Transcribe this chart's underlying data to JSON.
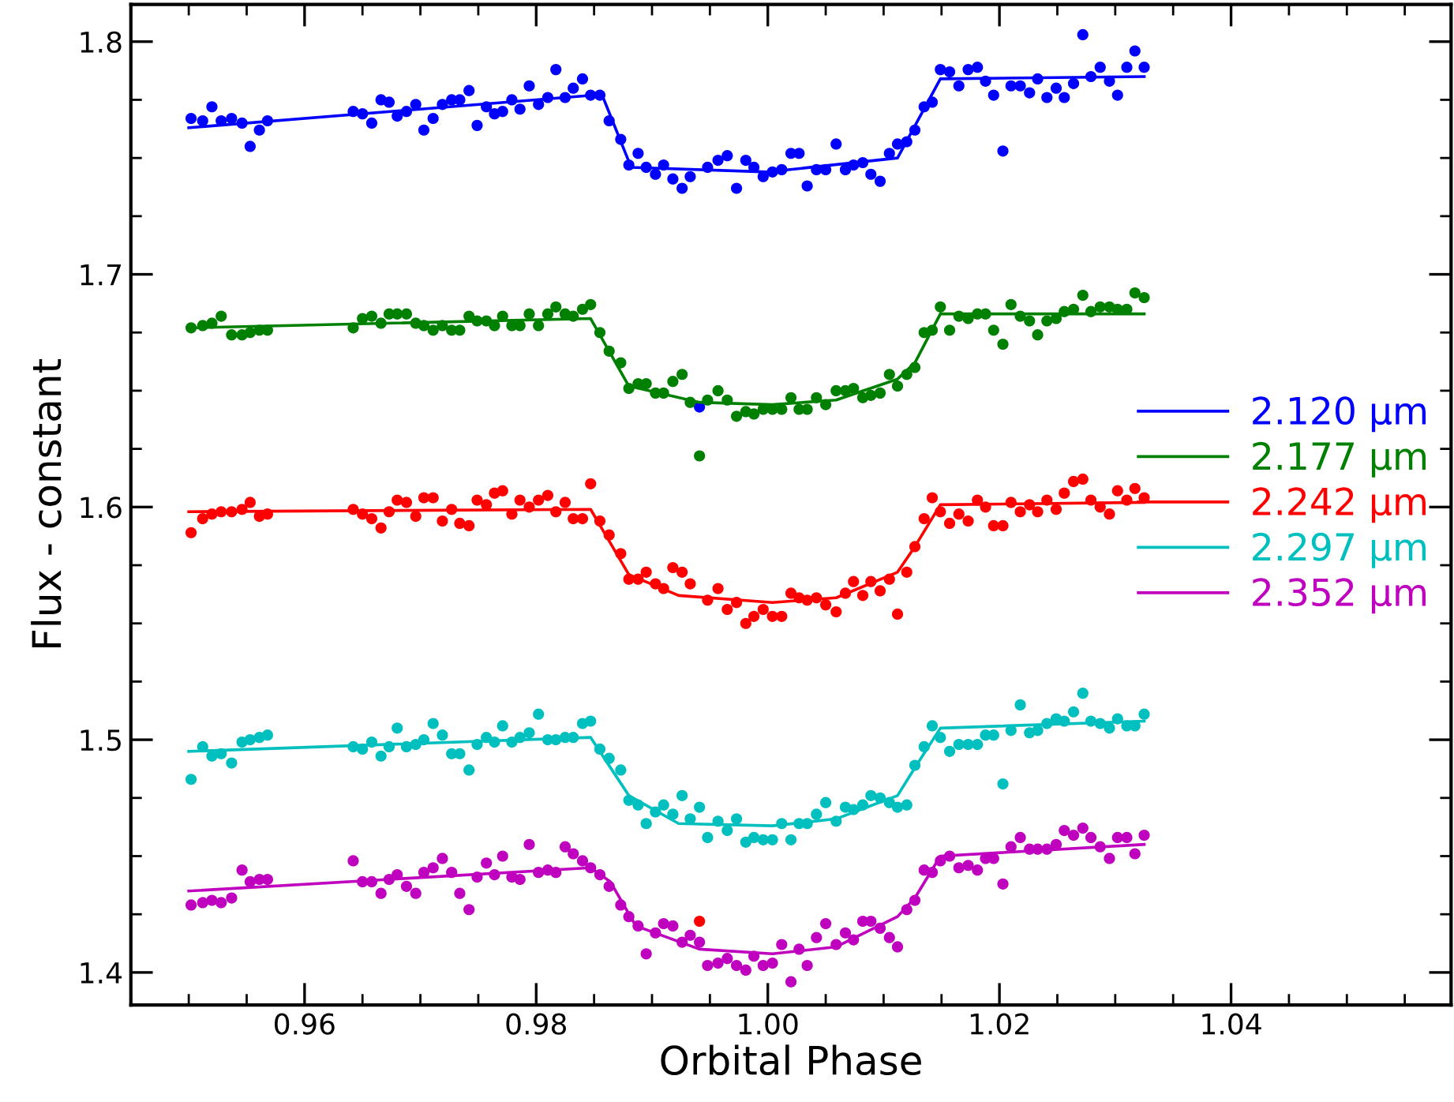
{
  "chart_data": {
    "type": "scatter",
    "xlabel": "Orbital Phase",
    "ylabel": "Flux - constant",
    "xlim": [
      0.945,
      1.059
    ],
    "ylim": [
      1.386,
      1.816
    ],
    "xticks": [
      0.96,
      0.98,
      {
        "value": 1.0,
        "label": "1.00"
      },
      1.02,
      1.04
    ],
    "yticks": [
      1.4,
      1.5,
      1.6,
      1.7,
      1.8
    ],
    "grid": false,
    "legend": "right",
    "x": [
      0.9502,
      0.9512,
      0.952,
      0.9528,
      0.9537,
      0.9546,
      0.9553,
      0.9561,
      0.9568,
      0.9642,
      0.965,
      0.9658,
      0.9666,
      0.9673,
      0.968,
      0.9688,
      0.9696,
      0.9703,
      0.9711,
      0.9719,
      0.9727,
      0.9734,
      0.9742,
      0.9749,
      0.9757,
      0.9764,
      0.9771,
      0.9779,
      0.9786,
      0.9794,
      0.9802,
      0.981,
      0.9817,
      0.9825,
      0.9832,
      0.984,
      0.9847,
      0.9855,
      0.9863,
      0.9873,
      0.988,
      0.9888,
      0.9895,
      0.9903,
      0.991,
      0.9918,
      0.9926,
      0.9933,
      0.9941,
      0.9948,
      0.9957,
      0.9965,
      0.9973,
      0.9981,
      0.9988,
      0.9996,
      1.0004,
      1.0012,
      1.002,
      1.0027,
      1.0034,
      1.0042,
      1.005,
      1.0059,
      1.0067,
      1.0074,
      1.0082,
      1.0089,
      1.0097,
      1.0105,
      1.0112,
      1.012,
      1.0127,
      1.0135,
      1.0142,
      1.0149,
      1.0157,
      1.0165,
      1.0173,
      1.0181,
      1.0188,
      1.0195,
      1.0203,
      1.021,
      1.0218,
      1.0226,
      1.0233,
      1.0241,
      1.0249,
      1.0256,
      1.0264,
      1.0272,
      1.0279,
      1.0287,
      1.0295,
      1.0302,
      1.031,
      1.0317,
      1.0325
    ],
    "series": [
      {
        "marker": "circle",
        "color": "#0000ff",
        "values": [
          1.767,
          1.766,
          1.772,
          1.766,
          1.767,
          1.765,
          1.755,
          1.762,
          1.766,
          1.77,
          1.769,
          1.765,
          1.775,
          1.774,
          1.768,
          1.77,
          1.773,
          1.762,
          1.767,
          1.773,
          1.775,
          1.775,
          1.779,
          1.764,
          1.772,
          1.769,
          1.77,
          1.775,
          1.771,
          1.781,
          1.773,
          1.776,
          1.788,
          1.776,
          1.78,
          1.784,
          1.777,
          1.777,
          1.766,
          1.758,
          1.747,
          1.752,
          1.746,
          1.743,
          1.747,
          1.741,
          1.737,
          1.742,
          1.643,
          1.746,
          1.749,
          1.751,
          1.737,
          1.749,
          1.746,
          1.742,
          1.744,
          1.745,
          1.752,
          1.752,
          1.738,
          1.745,
          1.745,
          1.756,
          1.745,
          1.747,
          1.748,
          1.743,
          1.74,
          1.752,
          1.756,
          1.757,
          1.762,
          1.772,
          1.774,
          1.788,
          1.787,
          1.781,
          1.788,
          1.789,
          1.783,
          1.777,
          1.753,
          1.781,
          1.781,
          1.778,
          1.784,
          1.776,
          1.78,
          1.776,
          1.782,
          1.803,
          1.785,
          1.789,
          1.783,
          1.777,
          1.789,
          1.796,
          1.789
        ]
      },
      {
        "marker": "circle",
        "color": "#008000",
        "values": [
          1.677,
          1.678,
          1.679,
          1.682,
          1.674,
          1.674,
          1.675,
          1.676,
          1.676,
          1.677,
          1.681,
          1.682,
          1.679,
          1.683,
          1.683,
          1.683,
          1.679,
          1.678,
          1.676,
          1.678,
          1.676,
          1.676,
          1.682,
          1.68,
          1.68,
          1.678,
          1.682,
          1.678,
          1.678,
          1.683,
          1.678,
          1.683,
          1.686,
          1.683,
          1.682,
          1.685,
          1.687,
          1.675,
          1.667,
          1.662,
          1.651,
          1.653,
          1.653,
          1.649,
          1.649,
          1.654,
          1.657,
          1.645,
          1.622,
          1.646,
          1.65,
          1.646,
          1.639,
          1.641,
          1.64,
          1.642,
          1.642,
          1.642,
          1.647,
          1.642,
          1.642,
          1.647,
          1.644,
          1.65,
          1.65,
          1.651,
          1.647,
          1.648,
          1.649,
          1.657,
          1.652,
          1.657,
          1.66,
          1.675,
          1.676,
          1.686,
          1.676,
          1.682,
          1.681,
          1.683,
          1.683,
          1.676,
          1.67,
          1.687,
          1.682,
          1.68,
          1.674,
          1.68,
          1.681,
          1.684,
          1.685,
          1.691,
          1.684,
          1.686,
          1.686,
          1.685,
          1.685,
          1.692,
          1.69
        ]
      },
      {
        "marker": "circle",
        "color": "#ff0000",
        "values": [
          1.589,
          1.595,
          1.597,
          1.598,
          1.598,
          1.599,
          1.602,
          1.596,
          1.597,
          1.599,
          1.597,
          1.595,
          1.591,
          1.598,
          1.603,
          1.602,
          1.596,
          1.604,
          1.604,
          1.594,
          1.599,
          1.593,
          1.592,
          1.603,
          1.601,
          1.606,
          1.607,
          1.597,
          1.603,
          1.6,
          1.603,
          1.605,
          1.598,
          1.602,
          1.595,
          1.595,
          1.61,
          1.594,
          1.588,
          1.58,
          1.569,
          1.569,
          1.572,
          1.567,
          1.565,
          1.574,
          1.572,
          1.567,
          1.422,
          1.56,
          1.565,
          1.556,
          1.559,
          1.55,
          1.553,
          1.556,
          1.553,
          1.553,
          1.563,
          1.561,
          1.56,
          1.561,
          1.558,
          1.555,
          1.563,
          1.568,
          1.562,
          1.568,
          1.564,
          1.569,
          1.554,
          1.572,
          1.583,
          1.595,
          1.604,
          1.598,
          1.593,
          1.597,
          1.594,
          1.603,
          1.6,
          1.592,
          1.592,
          1.602,
          1.598,
          1.601,
          1.598,
          1.603,
          1.599,
          1.606,
          1.611,
          1.612,
          1.603,
          1.6,
          1.597,
          1.607,
          1.603,
          1.608,
          1.604
        ]
      },
      {
        "marker": "circle",
        "color": "#00bfbf",
        "values": [
          1.483,
          1.497,
          1.493,
          1.494,
          1.49,
          1.499,
          1.5,
          1.501,
          1.502,
          1.497,
          1.496,
          1.499,
          1.493,
          1.497,
          1.505,
          1.497,
          1.498,
          1.5,
          1.507,
          1.502,
          1.494,
          1.494,
          1.487,
          1.498,
          1.501,
          1.499,
          1.506,
          1.499,
          1.501,
          1.503,
          1.511,
          1.5,
          1.5,
          1.501,
          1.501,
          1.507,
          1.508,
          1.496,
          1.492,
          1.487,
          1.474,
          1.472,
          1.464,
          1.469,
          1.472,
          1.468,
          1.476,
          1.466,
          1.471,
          1.458,
          1.465,
          1.461,
          1.466,
          1.456,
          1.458,
          1.457,
          1.457,
          1.464,
          1.457,
          1.464,
          1.464,
          1.468,
          1.473,
          1.465,
          1.471,
          1.47,
          1.472,
          1.476,
          1.475,
          1.473,
          1.471,
          1.472,
          1.489,
          1.497,
          1.506,
          1.501,
          1.495,
          1.498,
          1.498,
          1.498,
          1.502,
          1.502,
          1.481,
          1.504,
          1.515,
          1.503,
          1.504,
          1.507,
          1.509,
          1.508,
          1.512,
          1.52,
          1.508,
          1.507,
          1.505,
          1.509,
          1.506,
          1.506,
          1.511
        ]
      },
      {
        "marker": "circle",
        "color": "#bf00bf",
        "values": [
          1.429,
          1.43,
          1.431,
          1.43,
          1.432,
          1.444,
          1.439,
          1.44,
          1.44,
          1.448,
          1.439,
          1.439,
          1.434,
          1.44,
          1.442,
          1.437,
          1.434,
          1.443,
          1.445,
          1.449,
          1.443,
          1.434,
          1.427,
          1.441,
          1.447,
          1.442,
          1.45,
          1.441,
          1.44,
          1.455,
          1.443,
          1.444,
          1.443,
          1.454,
          1.451,
          1.448,
          1.445,
          1.442,
          1.437,
          1.429,
          1.424,
          1.42,
          1.408,
          1.417,
          1.421,
          1.42,
          1.413,
          1.416,
          1.413,
          1.403,
          1.404,
          1.406,
          1.403,
          1.401,
          1.407,
          1.403,
          1.404,
          1.412,
          1.396,
          1.41,
          1.403,
          1.415,
          1.421,
          1.412,
          1.417,
          1.414,
          1.422,
          1.422,
          1.419,
          1.415,
          1.411,
          1.427,
          1.431,
          1.444,
          1.443,
          1.448,
          1.45,
          1.445,
          1.446,
          1.444,
          1.449,
          1.449,
          1.438,
          1.454,
          1.458,
          1.453,
          1.453,
          1.453,
          1.455,
          1.461,
          1.459,
          1.462,
          1.458,
          1.454,
          1.449,
          1.458,
          1.458,
          1.451,
          1.459
        ]
      },
      {
        "type": "line",
        "marker": "none",
        "name": "2.120 μm",
        "color": "#0000ff",
        "x": [
          0.95,
          0.985,
          0.9857,
          0.9882,
          1.0,
          1.0112,
          1.0149,
          1.0325
        ],
        "values": [
          1.763,
          1.777,
          1.777,
          1.746,
          1.744,
          1.75,
          1.784,
          1.785
        ]
      },
      {
        "type": "line",
        "marker": "none",
        "name": "2.177 μm",
        "color": "#008000",
        "x": [
          0.95,
          0.9847,
          0.988,
          0.9941,
          1.0004,
          1.0059,
          1.0112,
          1.0127,
          1.0149,
          1.0325
        ],
        "values": [
          1.677,
          1.681,
          1.652,
          1.645,
          1.644,
          1.646,
          1.655,
          1.662,
          1.683,
          1.683
        ]
      },
      {
        "type": "line",
        "marker": "none",
        "name": "2.242 μm",
        "color": "#ff0000",
        "x": [
          0.95,
          0.9847,
          0.988,
          0.9923,
          1.0004,
          1.0059,
          1.0112,
          1.0127,
          1.0149,
          1.0325
        ],
        "values": [
          1.598,
          1.599,
          1.571,
          1.562,
          1.559,
          1.561,
          1.572,
          1.583,
          1.601,
          1.602
        ]
      },
      {
        "type": "line",
        "marker": "none",
        "name": "2.297 μm",
        "color": "#00bfbf",
        "x": [
          0.95,
          0.9847,
          0.988,
          0.9923,
          1.0004,
          1.0059,
          1.0112,
          1.0127,
          1.0149,
          1.0325
        ],
        "values": [
          1.495,
          1.501,
          1.476,
          1.464,
          1.463,
          1.466,
          1.476,
          1.488,
          1.505,
          1.508
        ]
      },
      {
        "type": "line",
        "marker": "none",
        "name": "2.352 μm",
        "color": "#bf00bf",
        "x": [
          0.95,
          0.9847,
          0.9864,
          0.9886,
          0.9941,
          1.0004,
          1.0059,
          1.0112,
          1.0127,
          1.0149,
          1.0325
        ],
        "values": [
          1.435,
          1.445,
          1.439,
          1.42,
          1.41,
          1.408,
          1.411,
          1.424,
          1.432,
          1.45,
          1.455
        ]
      }
    ]
  }
}
